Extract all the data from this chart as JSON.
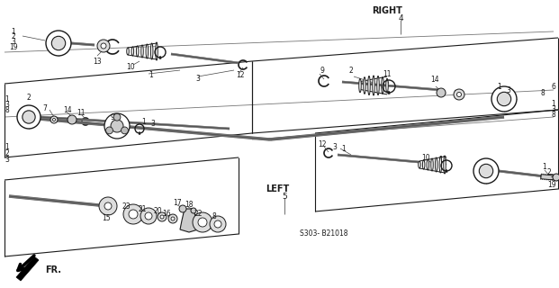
{
  "bg_color": "#ffffff",
  "diagram_code": "S303- B21018",
  "right_label": "RIGHT",
  "right_num": "4",
  "left_label": "LEFT",
  "left_num": "5",
  "fr_label": "FR.",
  "line_color": "#1a1a1a",
  "part_color": "#333333",
  "shaft_color": "#555555",
  "light_gray": "#cccccc",
  "mid_gray": "#888888",
  "dark_gray": "#444444"
}
